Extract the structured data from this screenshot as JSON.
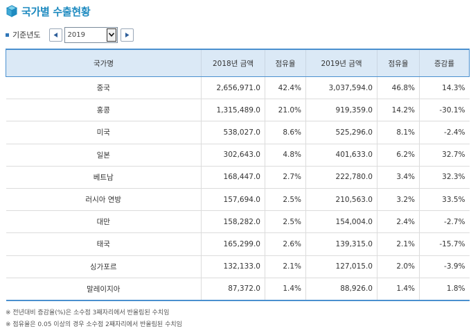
{
  "header": {
    "title": "국가별 수출현황"
  },
  "filter": {
    "label": "기준년도",
    "year": "2019"
  },
  "table": {
    "columns": [
      "국가명",
      "2018년 금액",
      "점유율",
      "2019년 금액",
      "점유율",
      "증감률"
    ],
    "rows": [
      [
        "중국",
        "2,656,971.0",
        "42.4%",
        "3,037,594.0",
        "46.8%",
        "14.3%"
      ],
      [
        "홍콩",
        "1,315,489.0",
        "21.0%",
        "919,359.0",
        "14.2%",
        "-30.1%"
      ],
      [
        "미국",
        "538,027.0",
        "8.6%",
        "525,296.0",
        "8.1%",
        "-2.4%"
      ],
      [
        "일본",
        "302,643.0",
        "4.8%",
        "401,633.0",
        "6.2%",
        "32.7%"
      ],
      [
        "베트남",
        "168,447.0",
        "2.7%",
        "222,780.0",
        "3.4%",
        "32.3%"
      ],
      [
        "러시아 연방",
        "157,694.0",
        "2.5%",
        "210,563.0",
        "3.2%",
        "33.5%"
      ],
      [
        "대만",
        "158,282.0",
        "2.5%",
        "154,004.0",
        "2.4%",
        "-2.7%"
      ],
      [
        "태국",
        "165,299.0",
        "2.6%",
        "139,315.0",
        "2.1%",
        "-15.7%"
      ],
      [
        "싱가포르",
        "132,133.0",
        "2.1%",
        "127,015.0",
        "2.0%",
        "-3.9%"
      ],
      [
        "말레이지아",
        "87,372.0",
        "1.4%",
        "88,926.0",
        "1.4%",
        "1.8%"
      ]
    ]
  },
  "notes": [
    "※ 전년대비 증감율(%)은 소수점 3째자리에서 반올림된 수치임",
    "※ 점유율은 0.05 이상의 경우 소수점 2째자리에서 반올림된 수치임"
  ]
}
